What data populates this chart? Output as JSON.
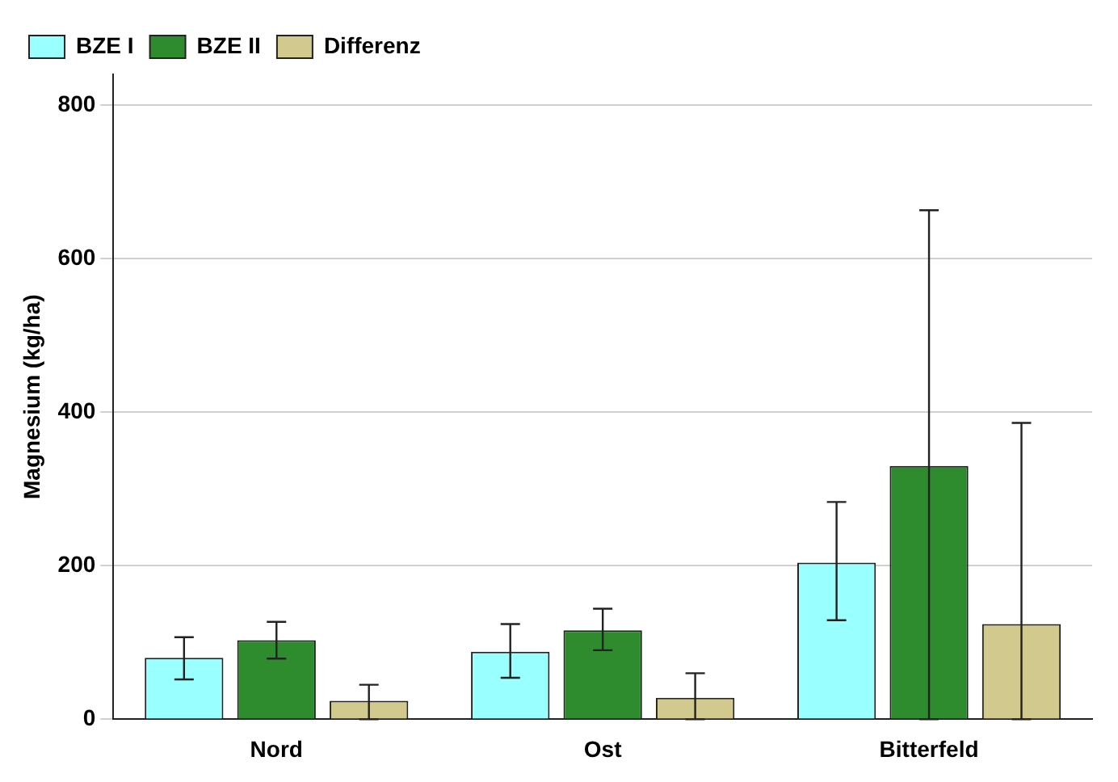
{
  "chart_data": {
    "type": "bar",
    "ylabel": "Magnesium (kg/ha)",
    "categories": [
      "Nord",
      "Ost",
      "Bitterfeld"
    ],
    "series": [
      {
        "name": "BZE I",
        "color": "#99ffff",
        "values": [
          80,
          88,
          204
        ],
        "errors": [
          [
            52,
            107
          ],
          [
            54,
            124
          ],
          [
            129,
            283
          ]
        ]
      },
      {
        "name": "BZE II",
        "color": "#2e8b2e",
        "values": [
          103,
          116,
          330
        ],
        "errors": [
          [
            79,
            127
          ],
          [
            90,
            144
          ],
          [
            0,
            663
          ]
        ]
      },
      {
        "name": "Differenz",
        "color": "#d2c98e",
        "values": [
          24,
          28,
          124
        ],
        "errors": [
          [
            0,
            45
          ],
          [
            0,
            60
          ],
          [
            0,
            386
          ]
        ]
      }
    ],
    "ylim": [
      0,
      840
    ],
    "yticks": [
      0,
      200,
      400,
      600,
      800
    ],
    "grid": "y",
    "legend": "top left"
  }
}
